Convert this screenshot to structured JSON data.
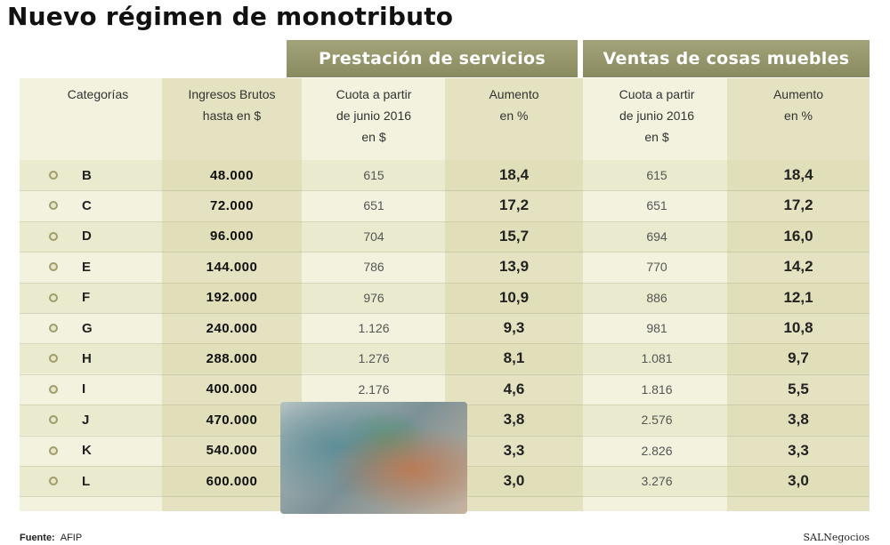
{
  "title": "Nuevo régimen de monotributo",
  "groups": {
    "servicios": "Prestación de servicios",
    "ventas": "Ventas de cosas muebles"
  },
  "headers": {
    "categoria": "Categorías",
    "ingresos": "Ingresos Brutos\nhasta en $",
    "cuota_servicios": "Cuota a partir\nde junio 2016\nen $",
    "aumento_servicios": "Aumento\nen %",
    "cuota_ventas": "Cuota a partir\nde junio 2016\nen $",
    "aumento_ventas": "Aumento\nen %"
  },
  "rows": [
    {
      "cat": "B",
      "ingresos": "48.000",
      "cuota_s": "615",
      "aum_s": "18,4",
      "cuota_v": "615",
      "aum_v": "18,4"
    },
    {
      "cat": "C",
      "ingresos": "72.000",
      "cuota_s": "651",
      "aum_s": "17,2",
      "cuota_v": "651",
      "aum_v": "17,2"
    },
    {
      "cat": "D",
      "ingresos": "96.000",
      "cuota_s": "704",
      "aum_s": "15,7",
      "cuota_v": "694",
      "aum_v": "16,0"
    },
    {
      "cat": "E",
      "ingresos": "144.000",
      "cuota_s": "786",
      "aum_s": "13,9",
      "cuota_v": "770",
      "aum_v": "14,2"
    },
    {
      "cat": "F",
      "ingresos": "192.000",
      "cuota_s": "976",
      "aum_s": "10,9",
      "cuota_v": "886",
      "aum_v": "12,1"
    },
    {
      "cat": "G",
      "ingresos": "240.000",
      "cuota_s": "1.126",
      "aum_s": "9,3",
      "cuota_v": "981",
      "aum_v": "10,8"
    },
    {
      "cat": "H",
      "ingresos": "288.000",
      "cuota_s": "1.276",
      "aum_s": "8,1",
      "cuota_v": "1.081",
      "aum_v": "9,7"
    },
    {
      "cat": "I",
      "ingresos": "400.000",
      "cuota_s": "2.176",
      "aum_s": "4,6",
      "cuota_v": "1.816",
      "aum_v": "5,5"
    },
    {
      "cat": "J",
      "ingresos": "470.000",
      "cuota_s": "",
      "aum_s": "3,8",
      "cuota_v": "2.576",
      "aum_v": "3,8"
    },
    {
      "cat": "K",
      "ingresos": "540.000",
      "cuota_s": "",
      "aum_s": "3,3",
      "cuota_v": "2.826",
      "aum_v": "3,3"
    },
    {
      "cat": "L",
      "ingresos": "600.000",
      "cuota_s": "",
      "aum_s": "3,0",
      "cuota_v": "3.276",
      "aum_v": "3,0"
    }
  ],
  "footer": {
    "source_label": "Fuente:",
    "source_value": "AFIP",
    "brand": "SALNegocios"
  },
  "colors": {
    "group_header": "#9a9a6e",
    "panel": "#f3f2df",
    "shade": "#dedcb8"
  }
}
